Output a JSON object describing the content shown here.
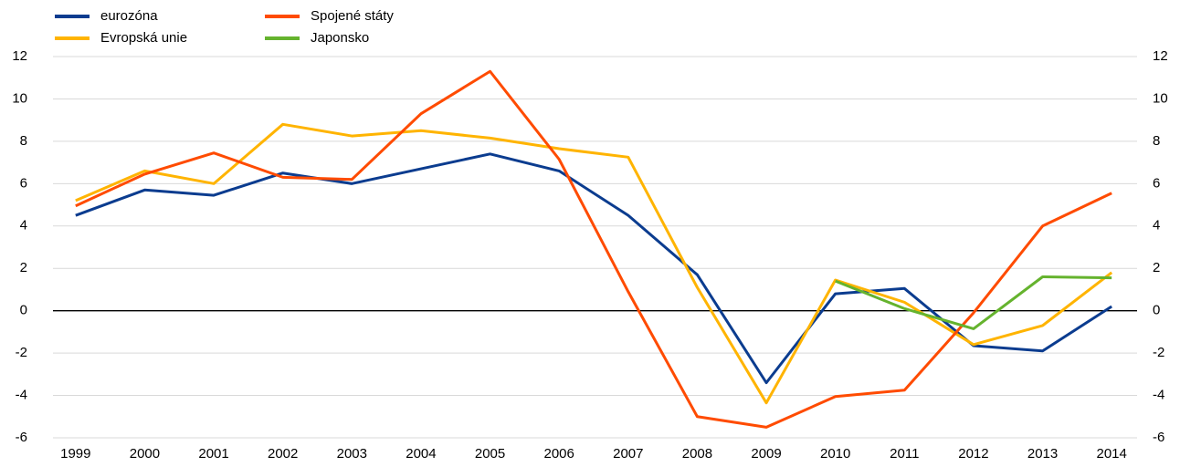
{
  "chart_data": {
    "type": "line",
    "categories": [
      "1999",
      "2000",
      "2001",
      "2002",
      "2003",
      "2004",
      "2005",
      "2006",
      "2007",
      "2008",
      "2009",
      "2010",
      "2011",
      "2012",
      "2013",
      "2014"
    ],
    "series": [
      {
        "name": "eurozóna",
        "color": "#0b3c8f",
        "values": [
          4.5,
          5.7,
          5.45,
          6.5,
          6.0,
          6.7,
          7.4,
          6.6,
          4.5,
          1.7,
          -3.4,
          0.8,
          1.05,
          -1.65,
          -1.9,
          0.2
        ]
      },
      {
        "name": "Evropská unie",
        "color": "#ffb400",
        "values": [
          5.2,
          6.6,
          6.0,
          8.8,
          8.25,
          8.5,
          8.15,
          7.65,
          7.25,
          1.1,
          -4.35,
          1.45,
          0.4,
          -1.6,
          -0.7,
          1.8
        ]
      },
      {
        "name": "Spojené státy",
        "color": "#ff4b00",
        "values": [
          4.95,
          6.45,
          7.45,
          6.3,
          6.2,
          9.3,
          11.3,
          7.15,
          0.9,
          -5.0,
          -5.5,
          -4.05,
          -3.75,
          -0.1,
          4.0,
          5.55
        ]
      },
      {
        "name": "Japonsko",
        "color": "#65b32e",
        "values": [
          null,
          null,
          null,
          null,
          null,
          null,
          null,
          null,
          null,
          null,
          null,
          1.4,
          0.1,
          -0.85,
          1.6,
          1.55
        ]
      }
    ],
    "ylim": [
      -6,
      12
    ],
    "yticks": [
      -6,
      -4,
      -2,
      0,
      2,
      4,
      6,
      8,
      10,
      12
    ],
    "y2lim": [
      -6,
      12
    ],
    "y2ticks": [
      -6,
      -4,
      -2,
      0,
      2,
      4,
      6,
      8,
      10,
      12
    ],
    "grid": true
  }
}
